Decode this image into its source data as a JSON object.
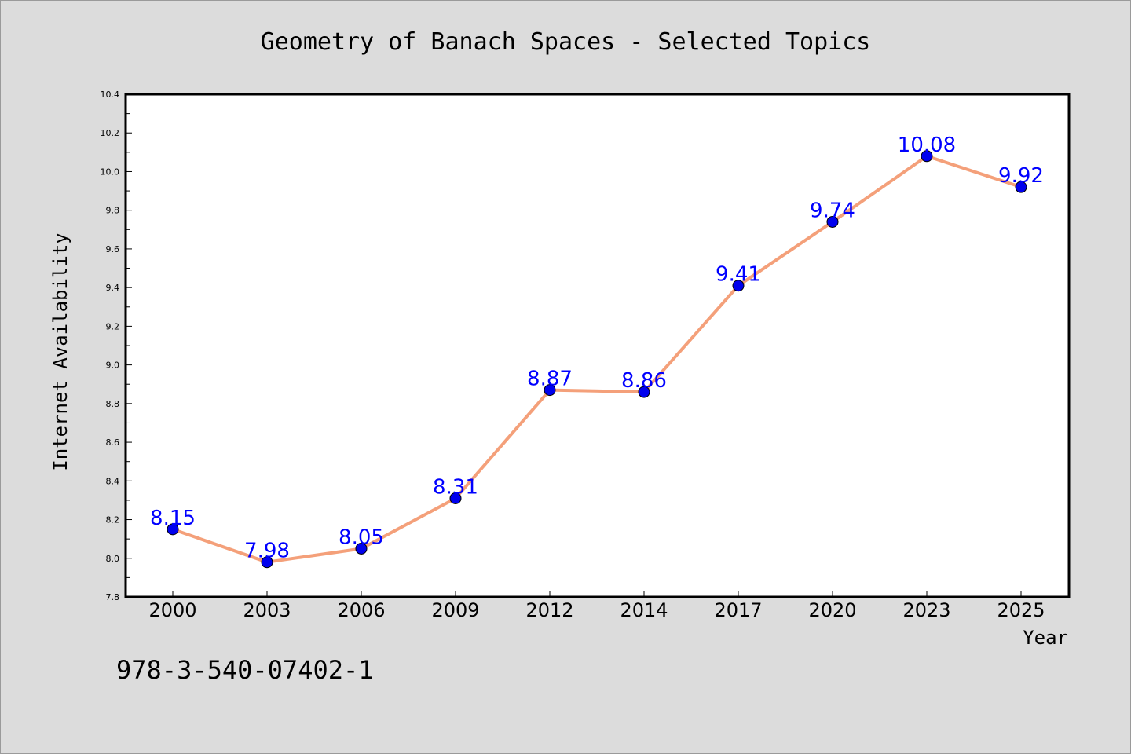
{
  "chart_data": {
    "type": "line",
    "title": "Geometry of Banach Spaces - Selected Topics",
    "xlabel": "Year",
    "ylabel": "Internet Availability",
    "categories": [
      "2000",
      "2003",
      "2006",
      "2009",
      "2012",
      "2014",
      "2017",
      "2020",
      "2023",
      "2025"
    ],
    "series": [
      {
        "values": [
          8.15,
          7.98,
          8.05,
          8.31,
          8.87,
          8.86,
          9.41,
          9.74,
          10.08,
          9.92
        ],
        "labels": [
          "8.15",
          "7.98",
          "8.05",
          "8.31",
          "8.87",
          "8.86",
          "9.41",
          "9.74",
          "10.08",
          "9.92"
        ],
        "line_color": "#f4a07a",
        "marker_color": "#0000ee"
      }
    ],
    "ylim": [
      7.8,
      10.4
    ],
    "yticks": [
      "7.8",
      "8.0",
      "8.2",
      "8.4",
      "8.6",
      "8.8",
      "9.0",
      "9.2",
      "9.4",
      "9.6",
      "9.8",
      "10.0",
      "10.2",
      "10.4"
    ],
    "grid": false,
    "data_label_color": "#0000ff"
  },
  "footer": {
    "isbn": "978-3-540-07402-1"
  },
  "colors": {
    "background": "#dcdcdc",
    "plot_background": "#ffffff"
  }
}
